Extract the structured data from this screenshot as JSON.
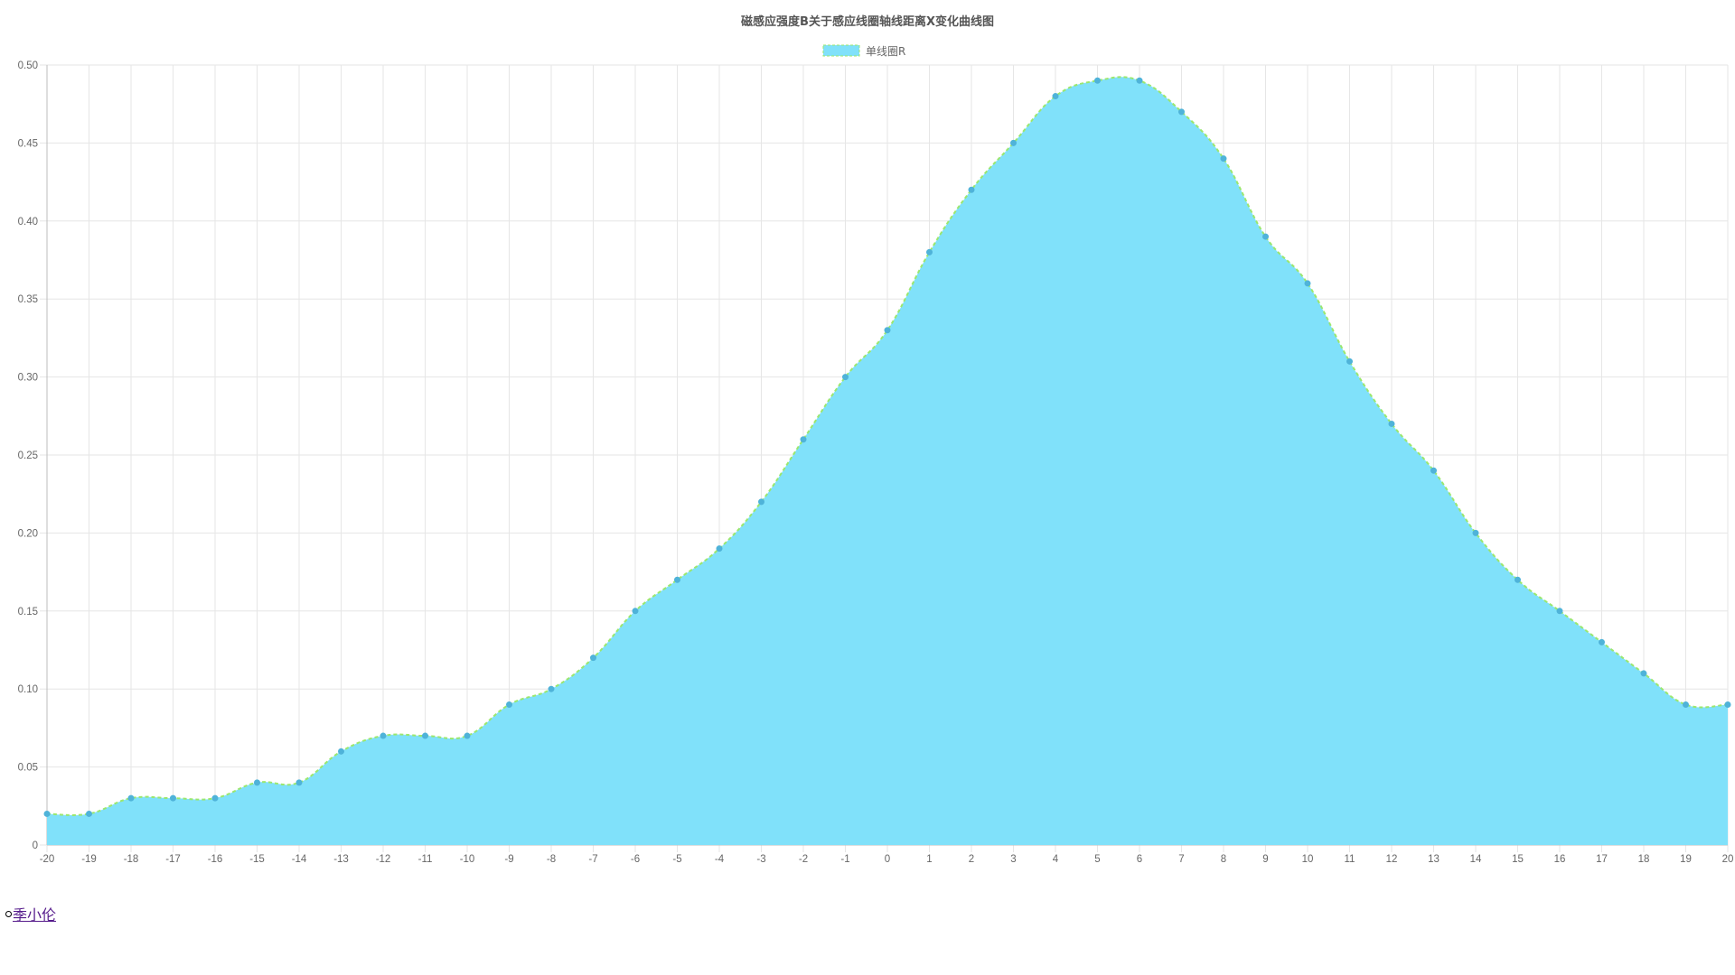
{
  "chart_data": {
    "type": "area",
    "title": "磁感应强度B关于感应线圈轴线距离X变化曲线图",
    "xlabel": "",
    "ylabel": "",
    "x": [
      -20,
      -19,
      -18,
      -17,
      -16,
      -15,
      -14,
      -13,
      -12,
      -11,
      -10,
      -9,
      -8,
      -7,
      -6,
      -5,
      -4,
      -3,
      -2,
      -1,
      0,
      1,
      2,
      3,
      4,
      5,
      6,
      7,
      8,
      9,
      10,
      11,
      12,
      13,
      14,
      15,
      16,
      17,
      18,
      19,
      20
    ],
    "series": [
      {
        "name": "单线圈R",
        "values": [
          0.02,
          0.02,
          0.03,
          0.03,
          0.03,
          0.04,
          0.04,
          0.06,
          0.07,
          0.07,
          0.07,
          0.09,
          0.1,
          0.12,
          0.15,
          0.17,
          0.19,
          0.22,
          0.26,
          0.3,
          0.33,
          0.38,
          0.42,
          0.45,
          0.48,
          0.49,
          0.49,
          0.47,
          0.44,
          0.39,
          0.36,
          0.31,
          0.27,
          0.24,
          0.2,
          0.17,
          0.15,
          0.13,
          0.11,
          0.09,
          0.09
        ],
        "fill_color": "#80e1fa",
        "line_color": "#9be76e",
        "point_color": "#4fb3d9"
      }
    ],
    "xlim": [
      -20,
      20
    ],
    "ylim": [
      0,
      0.5
    ],
    "y_ticks": [
      "0",
      "0.05",
      "0.10",
      "0.15",
      "0.20",
      "0.25",
      "0.30",
      "0.35",
      "0.40",
      "0.45",
      "0.50"
    ],
    "grid": true,
    "legend_position": "top"
  },
  "footer": {
    "link_text": "季小伦"
  }
}
